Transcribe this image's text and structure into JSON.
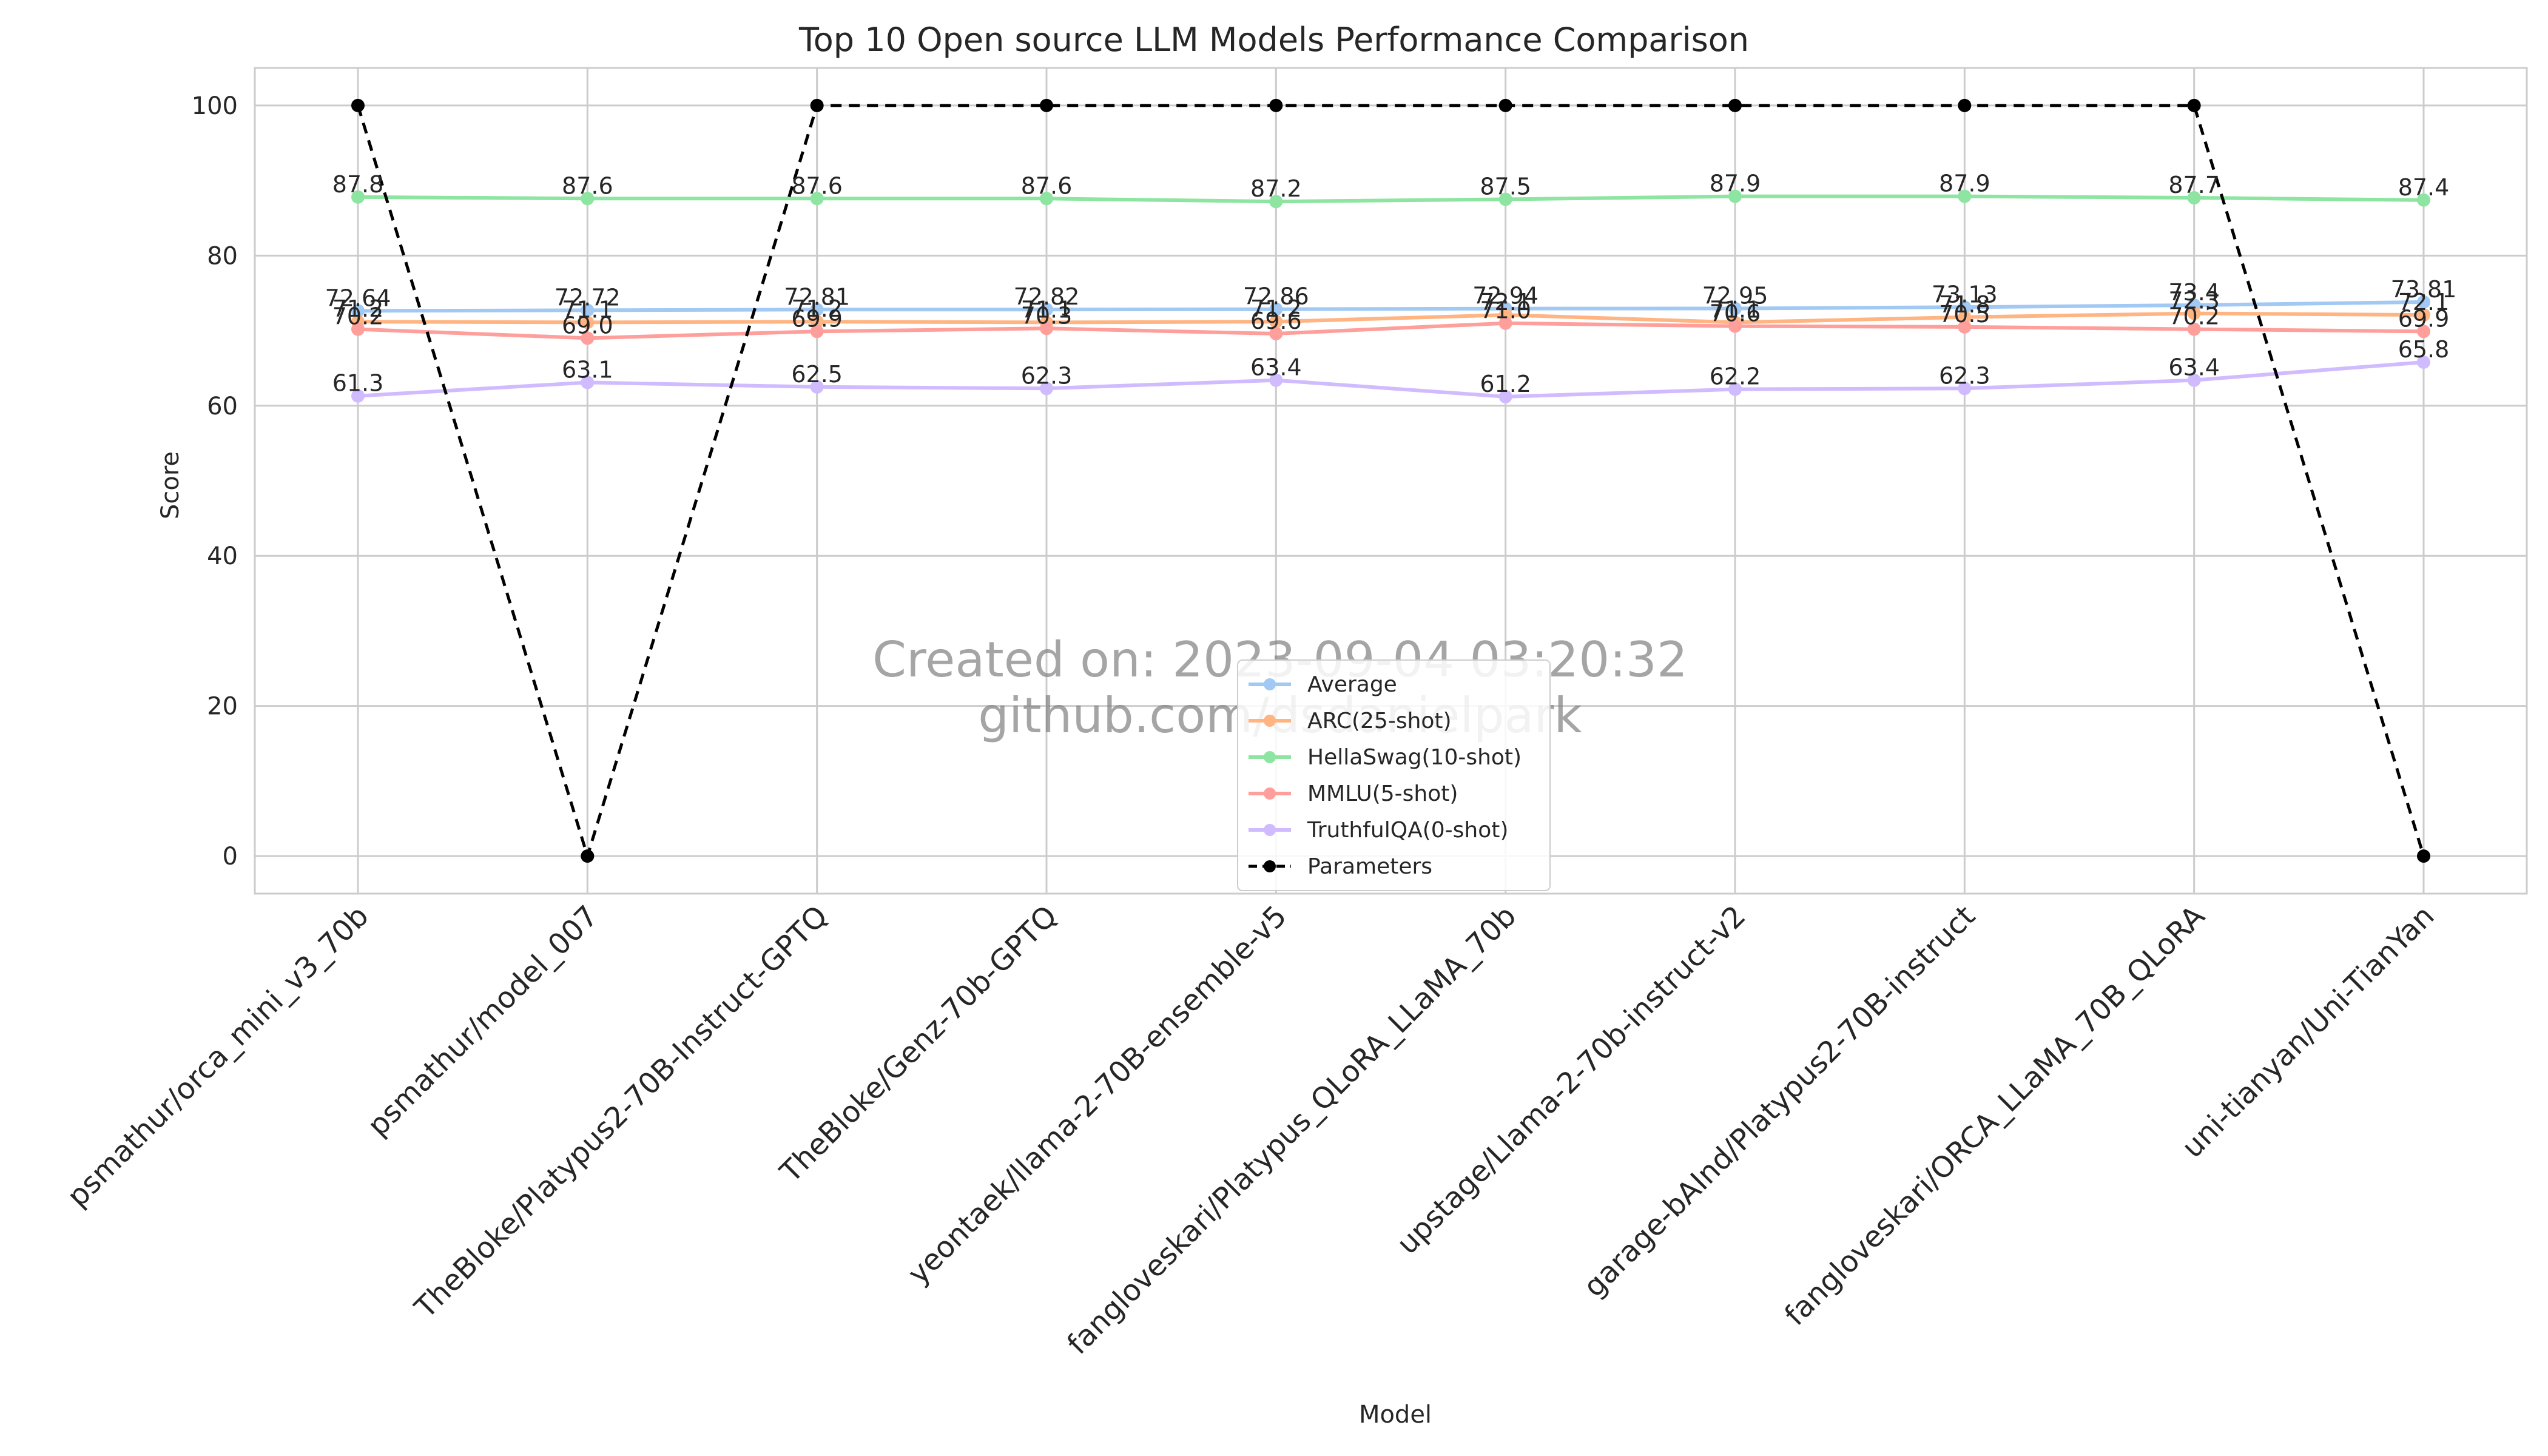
{
  "chart_data": {
    "type": "line",
    "title": "Top 10 Open source LLM Models Performance Comparison",
    "xlabel": "Model",
    "ylabel": "Score",
    "ylim": [
      -5,
      105
    ],
    "yticks": [
      0,
      20,
      40,
      60,
      80,
      100
    ],
    "grid": true,
    "legend_position": "lower-center",
    "categories": [
      "psmathur/orca_mini_v3_70b",
      "psmathur/model_007",
      "TheBloke/Platypus2-70B-Instruct-GPTQ",
      "TheBloke/Genz-70b-GPTQ",
      "yeontaek/llama-2-70B-ensemble-v5",
      "fangloveskari/Platypus_QLoRA_LLaMA_70b",
      "upstage/Llama-2-70b-instruct-v2",
      "garage-bAInd/Platypus2-70B-instruct",
      "fangloveskari/ORCA_LLaMA_70B_QLoRA",
      "uni-tianyan/Uni-TianYan"
    ],
    "series": [
      {
        "name": "Average",
        "color": "#a1c9f4",
        "dashed": false,
        "values": [
          72.64,
          72.72,
          72.81,
          72.82,
          72.86,
          72.94,
          72.95,
          73.13,
          73.4,
          73.81
        ],
        "labels": [
          "72.64",
          "72.72",
          "72.81",
          "72.82",
          "72.86",
          "72.94",
          "72.95",
          "73.13",
          "73.4",
          "73.81"
        ]
      },
      {
        "name": "ARC(25-shot)",
        "color": "#ffb482",
        "dashed": false,
        "values": [
          71.2,
          71.1,
          71.2,
          71.1,
          71.2,
          72.1,
          71.1,
          71.8,
          72.3,
          72.1
        ],
        "labels": [
          "71.2",
          "71.1",
          "71.2",
          "71.1",
          "71.2",
          "72.1",
          "71.1",
          "71.8",
          "72.3",
          "72.1"
        ]
      },
      {
        "name": "HellaSwag(10-shot)",
        "color": "#8de5a1",
        "dashed": false,
        "values": [
          87.8,
          87.6,
          87.6,
          87.6,
          87.2,
          87.5,
          87.9,
          87.9,
          87.7,
          87.4
        ],
        "labels": [
          "87.8",
          "87.6",
          "87.6",
          "87.6",
          "87.2",
          "87.5",
          "87.9",
          "87.9",
          "87.7",
          "87.4"
        ]
      },
      {
        "name": "MMLU(5-shot)",
        "color": "#ff9f9b",
        "dashed": false,
        "values": [
          70.2,
          69.0,
          69.9,
          70.3,
          69.6,
          71.0,
          70.6,
          70.5,
          70.2,
          69.9
        ],
        "labels": [
          "70.2",
          "69.0",
          "69.9",
          "70.3",
          "69.6",
          "71.0",
          "70.6",
          "70.5",
          "70.2",
          "69.9"
        ]
      },
      {
        "name": "TruthfulQA(0-shot)",
        "color": "#d0bbff",
        "dashed": false,
        "values": [
          61.3,
          63.1,
          62.5,
          62.3,
          63.4,
          61.2,
          62.2,
          62.3,
          63.4,
          65.8
        ],
        "labels": [
          "61.3",
          "63.1",
          "62.5",
          "62.3",
          "63.4",
          "61.2",
          "62.2",
          "62.3",
          "63.4",
          "65.8"
        ]
      },
      {
        "name": "Parameters",
        "color": "#000000",
        "dashed": true,
        "values": [
          100,
          0,
          100,
          100,
          100,
          100,
          100,
          100,
          100,
          0
        ],
        "labels": []
      }
    ],
    "watermark": [
      "Created on: 2023-09-04 03:20:32",
      "github.com/dsdanielpark"
    ]
  }
}
